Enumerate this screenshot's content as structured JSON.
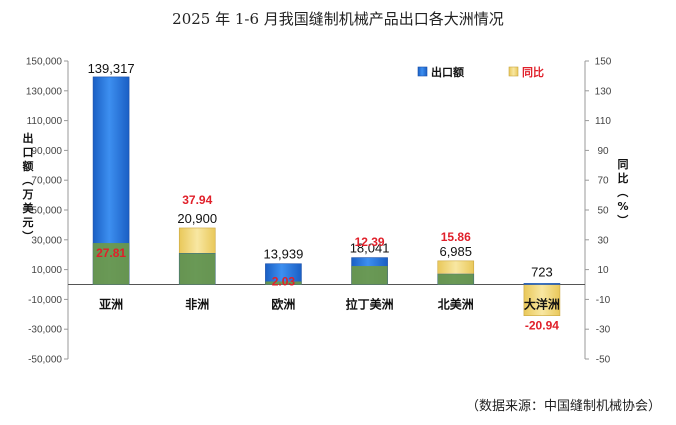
{
  "chart_data": {
    "type": "bar",
    "title": "2025 年 1-6 月我国缝制机械产品出口各大洲情况",
    "categories": [
      "亚洲",
      "非洲",
      "欧洲",
      "拉丁美洲",
      "北美洲",
      "大洋洲"
    ],
    "series": [
      {
        "name": "出口额",
        "axis": "left",
        "values": [
          139317,
          20900,
          13939,
          18041,
          6985,
          723
        ],
        "value_labels": [
          "139,317",
          "20,900",
          "13,939",
          "18,041",
          "6,985",
          "723"
        ],
        "color": "#1e6fd6"
      },
      {
        "name": "同比",
        "axis": "right",
        "values": [
          27.81,
          37.94,
          2.03,
          12.39,
          15.86,
          -20.94
        ],
        "value_labels": [
          "27.81",
          "37.94",
          "2.03",
          "12.39",
          "15.86",
          "-20.94"
        ],
        "color": "#f2d779"
      }
    ],
    "ylabel": "出口额（万美元）",
    "y2label": "同比（%）",
    "ylim": [
      -50000,
      150000
    ],
    "y2lim": [
      -50,
      150
    ],
    "yticks": [
      "150,000",
      "130,000",
      "110,000",
      "90,000",
      "70,000",
      "50,000",
      "30,000",
      "10,000",
      "-10,000",
      "-30,000",
      "-50,000"
    ],
    "y2ticks": [
      "150",
      "130",
      "110",
      "90",
      "70",
      "50",
      "30",
      "10",
      "-10",
      "-30",
      "-50"
    ],
    "ytick_values": [
      150000,
      130000,
      110000,
      90000,
      70000,
      50000,
      30000,
      10000,
      -10000,
      -30000,
      -50000
    ],
    "y2tick_values": [
      150,
      130,
      110,
      90,
      70,
      50,
      30,
      10,
      -10,
      -30,
      -50
    ],
    "legend_position": "top-right",
    "source": "（数据来源：中国缝制机械协会）"
  }
}
